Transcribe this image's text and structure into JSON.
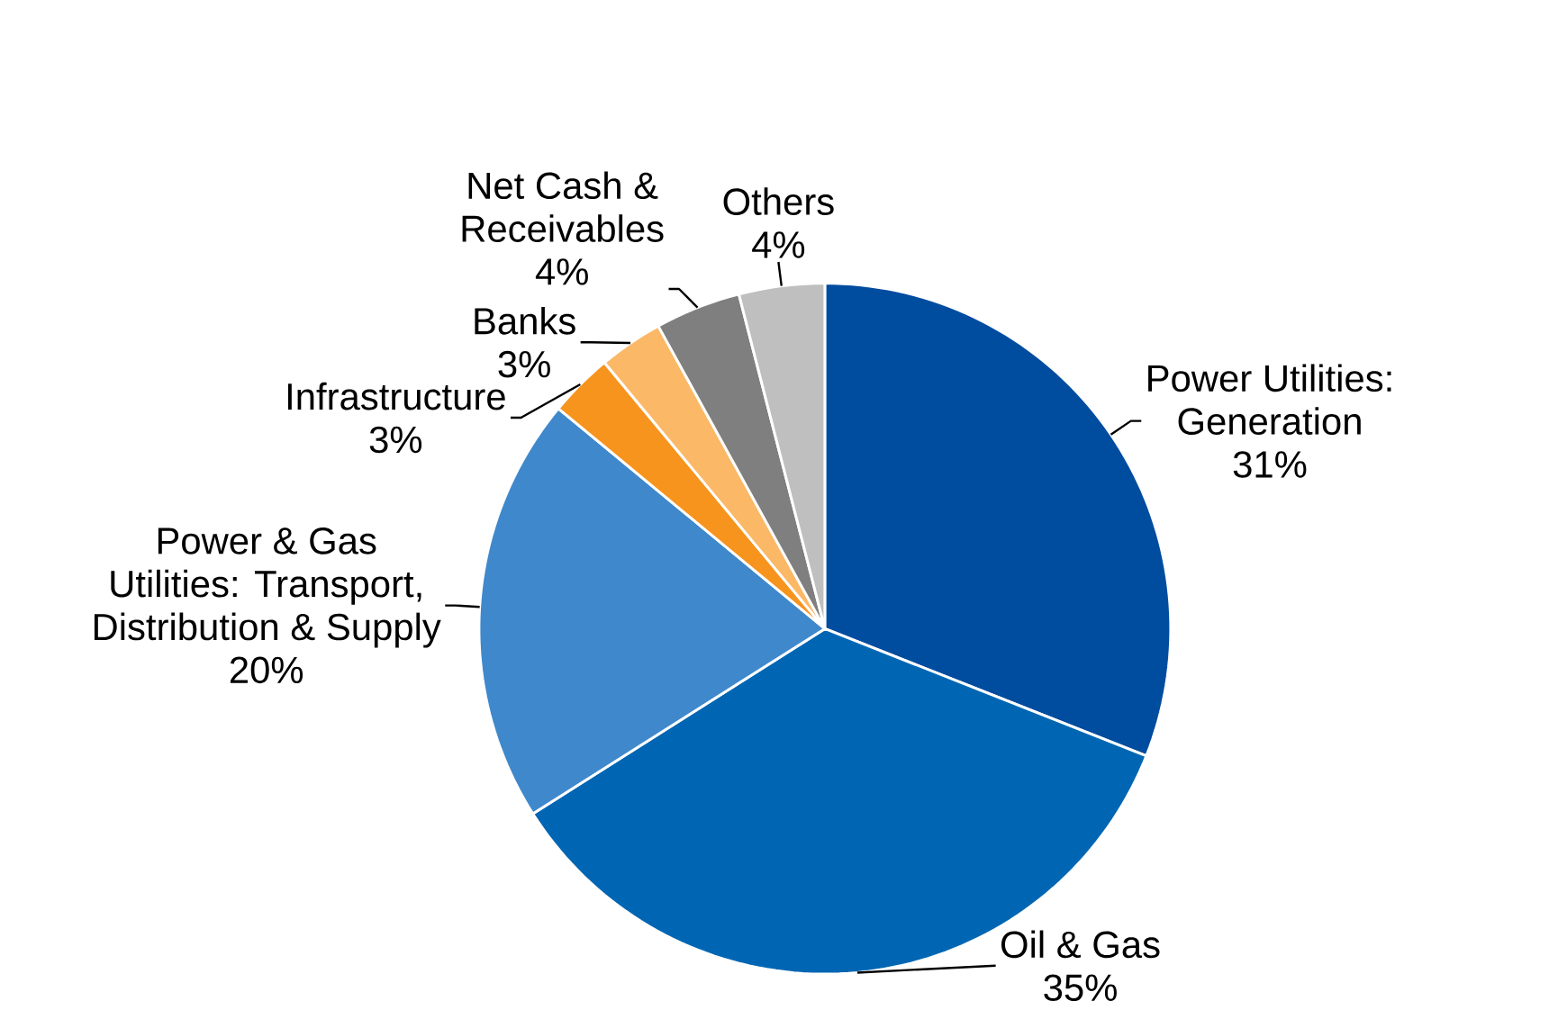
{
  "chart_data": {
    "type": "pie",
    "categories": [
      "Power Utilities: Generation",
      "Oil & Gas",
      "Power & Gas Utilities: Transport, Distribution & Supply",
      "Infrastructure",
      "Banks",
      "Net Cash & Receivables",
      "Others"
    ],
    "values": [
      31,
      35,
      20,
      3,
      3,
      4,
      4
    ],
    "value_labels": [
      "31%",
      "35%",
      "20%",
      "3%",
      "3%",
      "4%",
      "4%"
    ],
    "colors": [
      "#004c9f",
      "#0066b3",
      "#3f88cb",
      "#f7941d",
      "#fbb867",
      "#7f7f7f",
      "#bfbfbf"
    ]
  }
}
